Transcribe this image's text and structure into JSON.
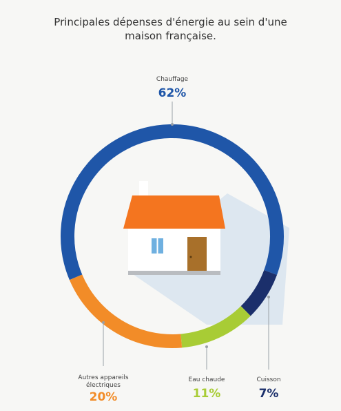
{
  "chart_data": {
    "type": "donut",
    "title": "Principales dépenses d'énergie au sein d'une maison française.",
    "categories": [
      "Chauffage",
      "Cuisson",
      "Eau chaude",
      "Autres appareils électriques"
    ],
    "values": [
      62,
      7,
      11,
      20
    ],
    "value_labels": [
      "62%",
      "7%",
      "11%",
      "20%"
    ],
    "colors": [
      "#1f56a8",
      "#1b2f6b",
      "#a8cc35",
      "#f28c28"
    ]
  }
}
